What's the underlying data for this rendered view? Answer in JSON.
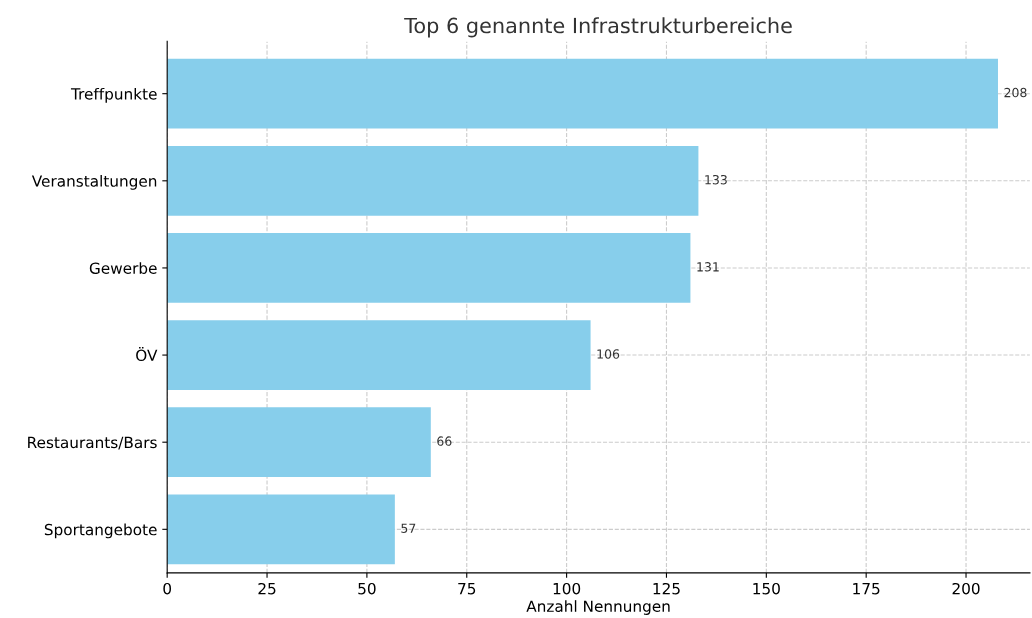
{
  "chart_data": {
    "type": "bar",
    "orientation": "horizontal",
    "title": "Top 6 genannte Infrastrukturbereiche",
    "xlabel": "Anzahl Nennungen",
    "categories": [
      "Treffpunkte",
      "Veranstaltungen",
      "Gewerbe",
      "ÖV",
      "Restaurants/Bars",
      "Sportangebote"
    ],
    "values": [
      208,
      133,
      131,
      106,
      66,
      57
    ],
    "color": "#87ceeb",
    "data_labels": true,
    "xlim": [
      0,
      216
    ],
    "xticks": [
      0,
      25,
      50,
      75,
      100,
      125,
      150,
      175,
      200
    ],
    "grid": true
  }
}
